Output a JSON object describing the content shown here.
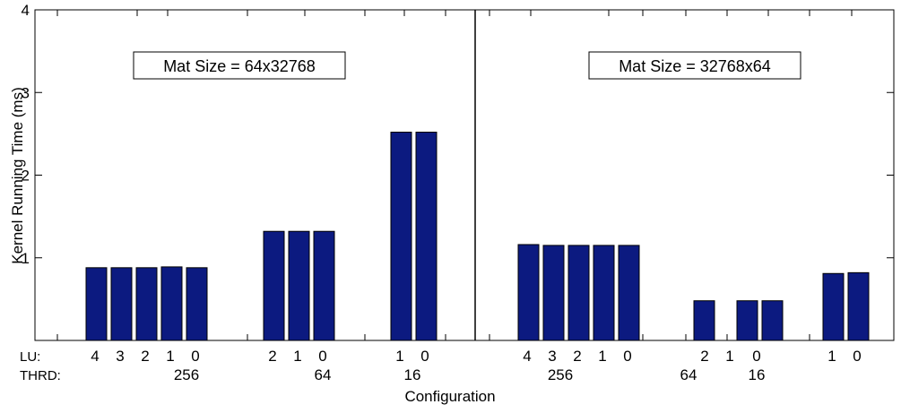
{
  "chart_data": {
    "type": "bar",
    "ylabel": "Kernel Running Time (ms)",
    "xlabel": "Configuration",
    "ylim": [
      0,
      4
    ],
    "yticks": [
      1,
      2,
      3,
      4
    ],
    "grid": false,
    "bar_color": "#0c1a80",
    "row_labels": {
      "lu": "LU:",
      "thrd": "THRD:"
    },
    "panels": [
      {
        "label": "Mat Size = 64x32768",
        "groups": [
          {
            "thrd": "256",
            "lu": [
              "4",
              "3",
              "2",
              "1",
              "0"
            ],
            "values": [
              0.88,
              0.88,
              0.88,
              0.89,
              0.88
            ]
          },
          {
            "thrd": "64",
            "lu": [
              "2",
              "1",
              "0"
            ],
            "values": [
              1.32,
              1.32,
              1.32
            ]
          },
          {
            "thrd": "16",
            "lu": [
              "1",
              "0"
            ],
            "values": [
              2.52,
              2.52
            ]
          }
        ]
      },
      {
        "label": "Mat Size = 32768x64",
        "groups": [
          {
            "thrd": "256",
            "lu": [
              "4",
              "3",
              "2",
              "1",
              "0"
            ],
            "values": [
              1.16,
              1.15,
              1.15,
              1.15,
              1.15
            ]
          },
          {
            "thrd": "64",
            "lu": [
              "2"
            ],
            "values": [
              0.48
            ]
          },
          {
            "thrd": "16",
            "lu": [
              "1",
              "0"
            ],
            "values": [
              0.48,
              0.48
            ]
          },
          {
            "thrd": "",
            "lu": [
              "1",
              "0"
            ],
            "values": [
              0.81,
              0.82
            ]
          }
        ]
      }
    ]
  }
}
